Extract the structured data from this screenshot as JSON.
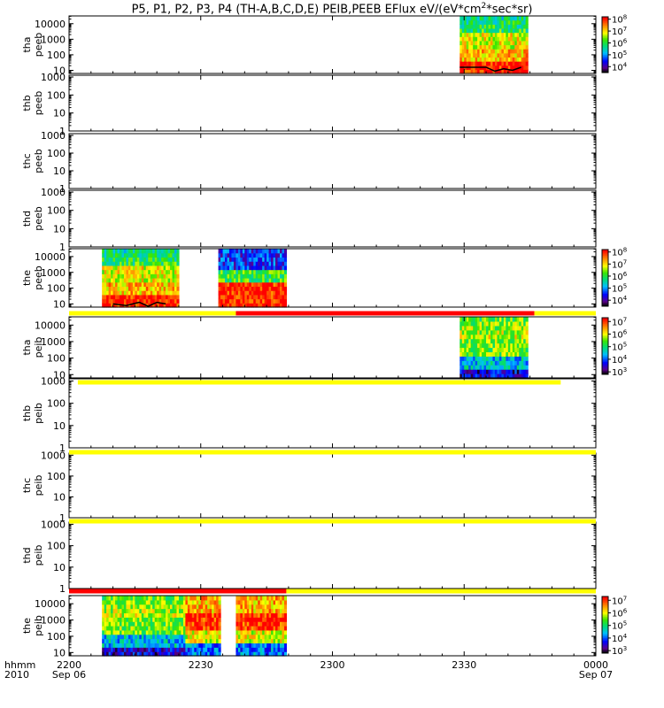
{
  "chart_data": {
    "type": "heatmap",
    "title": "P5, P1, P2, P3, P4 (TH-A,B,C,D,E) PEIB,PEEB EFlux eV/(eV*cm",
    "title_sup": "2",
    "title_tail": "*sec*sr)",
    "x_axis": {
      "label_line1": "hhmm",
      "label_line2": "2010",
      "range_minutes": [
        0,
        120
      ],
      "ticks": [
        {
          "value": 0,
          "label": "2200",
          "sublabel": "Sep 06"
        },
        {
          "value": 30,
          "label": "2230",
          "sublabel": ""
        },
        {
          "value": 60,
          "label": "2300",
          "sublabel": ""
        },
        {
          "value": 90,
          "label": "2330",
          "sublabel": ""
        },
        {
          "value": 120,
          "label": "0000",
          "sublabel": "Sep 07"
        }
      ]
    },
    "panels": [
      {
        "probe": "tha",
        "product": "peeb",
        "ylabel1": "tha",
        "ylabel2": "peeb",
        "yrange_log": [
          0.8,
          4.5
        ],
        "yticks": [
          1,
          2,
          3,
          4
        ],
        "ytick_labels": [
          "10",
          "100",
          "1000",
          "10000"
        ],
        "colorbar": {
          "min_exp": 3.5,
          "max_exp": 8.2,
          "ticks": [
            4,
            5,
            6,
            7,
            8
          ]
        },
        "segments": [
          {
            "t0": 89,
            "t1": 104.5,
            "kind": "electron"
          }
        ],
        "trace": [
          [
            89,
            1.2
          ],
          [
            95,
            1.2
          ],
          [
            97,
            0.95
          ],
          [
            99,
            1.1
          ],
          [
            101,
            1.0
          ],
          [
            103,
            1.2
          ]
        ]
      },
      {
        "probe": "thb",
        "product": "peeb",
        "ylabel1": "thb",
        "ylabel2": "peeb",
        "yrange_log": [
          0,
          3.1
        ],
        "yticks": [
          0,
          1,
          2,
          3
        ],
        "ytick_labels": [
          "1",
          "10",
          "100",
          "1000"
        ],
        "colorbar": null,
        "segments": [],
        "trace": []
      },
      {
        "probe": "thc",
        "product": "peeb",
        "ylabel1": "thc",
        "ylabel2": "peeb",
        "yrange_log": [
          0,
          3.1
        ],
        "yticks": [
          0,
          1,
          2,
          3
        ],
        "ytick_labels": [
          "1",
          "10",
          "100",
          "1000"
        ],
        "colorbar": null,
        "segments": [],
        "trace": []
      },
      {
        "probe": "thd",
        "product": "peeb",
        "ylabel1": "thd",
        "ylabel2": "peeb",
        "yrange_log": [
          0,
          3.1
        ],
        "yticks": [
          0,
          1,
          2,
          3
        ],
        "ytick_labels": [
          "1",
          "10",
          "100",
          "1000"
        ],
        "colorbar": null,
        "segments": [],
        "trace": []
      },
      {
        "probe": "the",
        "product": "peeb",
        "ylabel1": "the",
        "ylabel2": "peeb",
        "yrange_log": [
          0.8,
          4.5
        ],
        "yticks": [
          1,
          2,
          3,
          4
        ],
        "ytick_labels": [
          "10",
          "100",
          "1000",
          "10000"
        ],
        "colorbar": {
          "min_exp": 3.5,
          "max_exp": 8.2,
          "ticks": [
            4,
            5,
            6,
            7,
            8
          ]
        },
        "segments": [
          {
            "t0": 7.5,
            "t1": 25,
            "kind": "electron"
          },
          {
            "t0": 34,
            "t1": 49.5,
            "kind": "electron-hot"
          }
        ],
        "trace": [
          [
            10,
            1.0
          ],
          [
            13,
            0.9
          ],
          [
            16,
            1.1
          ],
          [
            18,
            0.85
          ],
          [
            20,
            1.1
          ],
          [
            22,
            1.0
          ]
        ]
      },
      {
        "probe": "tha",
        "product": "peib",
        "ylabel1": "tha",
        "ylabel2": "peib",
        "yrange_log": [
          0.8,
          4.5
        ],
        "yticks": [
          1,
          2,
          3,
          4
        ],
        "ytick_labels": [
          "10",
          "100",
          "1000",
          "10000"
        ],
        "colorbar": {
          "min_exp": 2.8,
          "max_exp": 7.3,
          "ticks": [
            3,
            4,
            5,
            6,
            7
          ]
        },
        "segments": [
          {
            "t0": 89,
            "t1": 104.5,
            "kind": "ion"
          }
        ],
        "trace": []
      },
      {
        "probe": "thb",
        "product": "peib",
        "ylabel1": "thb",
        "ylabel2": "peib",
        "yrange_log": [
          0,
          3.1
        ],
        "yticks": [
          0,
          1,
          2,
          3
        ],
        "ytick_labels": [
          "1",
          "10",
          "100",
          "1000"
        ],
        "colorbar": null,
        "segments": [],
        "trace": []
      },
      {
        "probe": "thc",
        "product": "peib",
        "ylabel1": "thc",
        "ylabel2": "peib",
        "yrange_log": [
          0,
          3.1
        ],
        "yticks": [
          0,
          1,
          2,
          3
        ],
        "ytick_labels": [
          "1",
          "10",
          "100",
          "1000"
        ],
        "colorbar": null,
        "segments": [],
        "trace": []
      },
      {
        "probe": "thd",
        "product": "peib",
        "ylabel1": "thd",
        "ylabel2": "peib",
        "yrange_log": [
          0,
          3.1
        ],
        "yticks": [
          0,
          1,
          2,
          3
        ],
        "ytick_labels": [
          "1",
          "10",
          "100",
          "1000"
        ],
        "colorbar": null,
        "segments": [],
        "trace": []
      },
      {
        "probe": "the",
        "product": "peib",
        "ylabel1": "the",
        "ylabel2": "peib",
        "yrange_log": [
          0.8,
          4.5
        ],
        "yticks": [
          1,
          2,
          3,
          4
        ],
        "ytick_labels": [
          "10",
          "100",
          "1000",
          "10000"
        ],
        "colorbar": {
          "min_exp": 2.8,
          "max_exp": 7.3,
          "ticks": [
            3,
            4,
            5,
            6,
            7
          ]
        },
        "segments": [
          {
            "t0": 7.5,
            "t1": 26.5,
            "kind": "ion"
          },
          {
            "t0": 26.5,
            "t1": 34.5,
            "kind": "ion-hot"
          },
          {
            "t0": 38,
            "t1": 49.5,
            "kind": "ion-hot"
          }
        ],
        "trace": []
      }
    ],
    "mode_bars": [
      {
        "after_panel": 4,
        "segments": [
          {
            "t0": 0,
            "t1": 38,
            "color": "#ffff00"
          },
          {
            "t0": 38,
            "t1": 106,
            "color": "#ff0000"
          },
          {
            "t0": 106,
            "t1": 120,
            "color": "#ffff00"
          }
        ]
      },
      {
        "after_panel": 5,
        "segments": [
          {
            "t0": 2,
            "t1": 112,
            "color": "#ffff00"
          }
        ]
      },
      {
        "after_panel": 6,
        "segments": [
          {
            "t0": 0,
            "t1": 120,
            "color": "#ffff00"
          }
        ]
      },
      {
        "after_panel": 7,
        "segments": [
          {
            "t0": 0,
            "t1": 120,
            "color": "#ffff00"
          }
        ]
      },
      {
        "after_panel": 8,
        "segments": [
          {
            "t0": 0,
            "t1": 49.5,
            "color": "#ff0000"
          },
          {
            "t0": 49.5,
            "t1": 120,
            "color": "#ffff00"
          }
        ]
      }
    ],
    "colors": {
      "axis": "#000000",
      "background": "#ffffff"
    }
  }
}
